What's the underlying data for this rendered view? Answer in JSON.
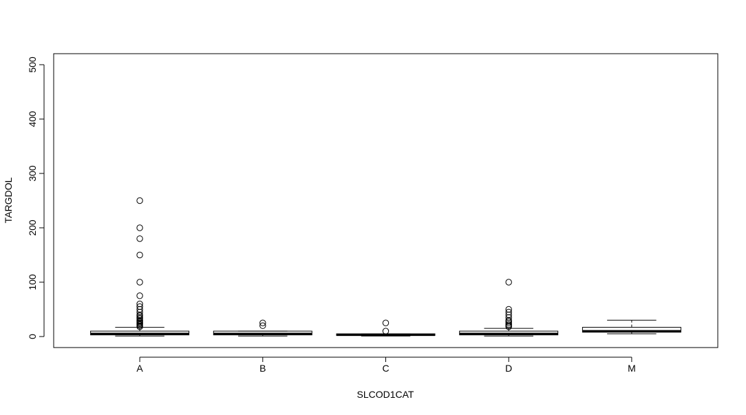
{
  "chart_data": {
    "type": "boxplot",
    "xlabel": "SLCOD1CAT",
    "ylabel": "TARGDOL",
    "ylim": [
      -20,
      520
    ],
    "yticks": [
      0,
      100,
      200,
      300,
      400,
      500
    ],
    "ytick_labels": [
      "0",
      "100",
      "200",
      "300",
      "400",
      "500"
    ],
    "categories": [
      "A",
      "B",
      "C",
      "D",
      "M"
    ],
    "boxes": [
      {
        "category": "A",
        "whisker_low": 1,
        "q1": 3,
        "median": 5,
        "q3": 10,
        "whisker_high": 17,
        "outliers": [
          18,
          20,
          22,
          24,
          25,
          27,
          29,
          30,
          33,
          35,
          38,
          40,
          45,
          50,
          55,
          60,
          75,
          100,
          150,
          180,
          200,
          250
        ]
      },
      {
        "category": "B",
        "whisker_low": 1,
        "q1": 3,
        "median": 5,
        "q3": 10,
        "whisker_high": 10,
        "outliers": [
          20,
          25
        ]
      },
      {
        "category": "C",
        "whisker_low": 1,
        "q1": 2,
        "median": 3,
        "q3": 5,
        "whisker_high": 5,
        "outliers": [
          10,
          25
        ]
      },
      {
        "category": "D",
        "whisker_low": 1,
        "q1": 3,
        "median": 5,
        "q3": 10,
        "whisker_high": 15,
        "outliers": [
          18,
          20,
          22,
          25,
          28,
          30,
          35,
          40,
          45,
          50,
          100
        ]
      },
      {
        "category": "M",
        "whisker_low": 5,
        "q1": 8,
        "median": 10,
        "q3": 17,
        "whisker_high": 30,
        "outliers": []
      }
    ]
  }
}
